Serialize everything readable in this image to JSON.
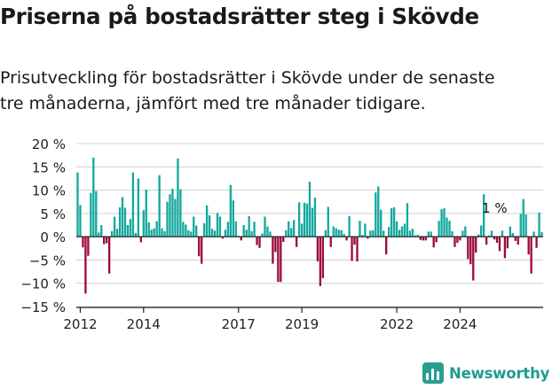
{
  "title": "Priserna på bostadsrätter steg i Skövde",
  "subtitle": "Prisutveckling för bostadsrätter i Skövde under de senaste\ntre månaderna, jämfört med tre månader tidigare.",
  "brand": {
    "name": "Newsworthy",
    "icon": "newsworthy-logo-icon",
    "color": "#1f9c8c"
  },
  "colors": {
    "positive": "#13a89e",
    "negative": "#9b0a3c",
    "axis": "#222222",
    "grid": "#d0d0d0"
  },
  "chart_data": {
    "type": "bar",
    "ylim": [
      -15,
      20
    ],
    "yticks": [
      20,
      15,
      10,
      5,
      0,
      -5,
      -10,
      -15
    ],
    "ytick_labels": [
      "20 %",
      "15 %",
      "10 %",
      "5 %",
      "0 %",
      "−5 %",
      "−10 %",
      "−15 %"
    ],
    "grid": true,
    "x_start": "2011-12",
    "xtick_labels": [
      {
        "label": "2012",
        "date": "2012-01"
      },
      {
        "label": "2014",
        "date": "2014-01"
      },
      {
        "label": "2017",
        "date": "2017-01"
      },
      {
        "label": "2019",
        "date": "2019-01"
      },
      {
        "label": "2022",
        "date": "2022-01"
      },
      {
        "label": "2024",
        "date": "2024-01"
      }
    ],
    "annotation": {
      "text": "1 %",
      "date": "2025-02",
      "value": 1
    },
    "values": [
      13.8,
      6.8,
      -2.3,
      -12.2,
      -4.1,
      9.4,
      17,
      9.8,
      0.9,
      2.5,
      -1.6,
      -1.4,
      -7.9,
      1.2,
      4.3,
      1.7,
      6.3,
      8.5,
      6.2,
      2.5,
      3.8,
      13.8,
      0.8,
      12.5,
      -1.2,
      5.7,
      10.1,
      3.1,
      1.5,
      1.8,
      3.3,
      13.2,
      1.8,
      1.2,
      7.5,
      9.1,
      10.3,
      8.1,
      16.8,
      10.2,
      3.2,
      2.6,
      1.4,
      1.1,
      4.3,
      2.4,
      -4.2,
      -5.8,
      2.9,
      6.7,
      4.6,
      1.7,
      1.3,
      5.1,
      4.3,
      -0.4,
      1.5,
      3.2,
      11.1,
      7.8,
      3.3,
      0.2,
      -0.8,
      2.5,
      1.5,
      4.4,
      1.2,
      3.2,
      -1.8,
      -2.4,
      0.7,
      4.3,
      2.2,
      1.1,
      -5.8,
      -3.3,
      -9.7,
      -9.7,
      -1.1,
      1.4,
      3.3,
      1.9,
      3.6,
      -2.2,
      7.4,
      2.8,
      7.3,
      7.1,
      11.8,
      6.2,
      8.4,
      -5.3,
      -10.6,
      -8.9,
      1.4,
      6.4,
      -2.2,
      2.2,
      1.8,
      1.5,
      1.4,
      0.6,
      -0.8,
      4.4,
      -5.2,
      -1.7,
      -5.3,
      3.4,
      0.4,
      2.8,
      -0.4,
      1.3,
      1.4,
      9.5,
      10.8,
      5.8,
      1.3,
      -3.8,
      2.1,
      6.1,
      6.3,
      3.3,
      1.5,
      2.2,
      2.8,
      7.2,
      1.3,
      1.7,
      0.3,
      0.4,
      -0.7,
      -0.8,
      -0.8,
      1.1,
      1.1,
      -2.3,
      -1.2,
      3.4,
      5.9,
      6.1,
      4.1,
      3.4,
      1.2,
      -2.2,
      -1.3,
      -0.8,
      1.3,
      2.2,
      -4.8,
      -5.9,
      -9.4,
      -3.4,
      0.5,
      2.4,
      9.1,
      -1.7,
      0.3,
      1.3,
      -0.6,
      -1.3,
      -3.1,
      1.3,
      -4.6,
      -2.5,
      2.2,
      0.8,
      -0.9,
      -1.7,
      4.9,
      8.1,
      4.8,
      -3.8,
      -7.9,
      1.1,
      -2.4,
      5.2,
      1
    ]
  }
}
